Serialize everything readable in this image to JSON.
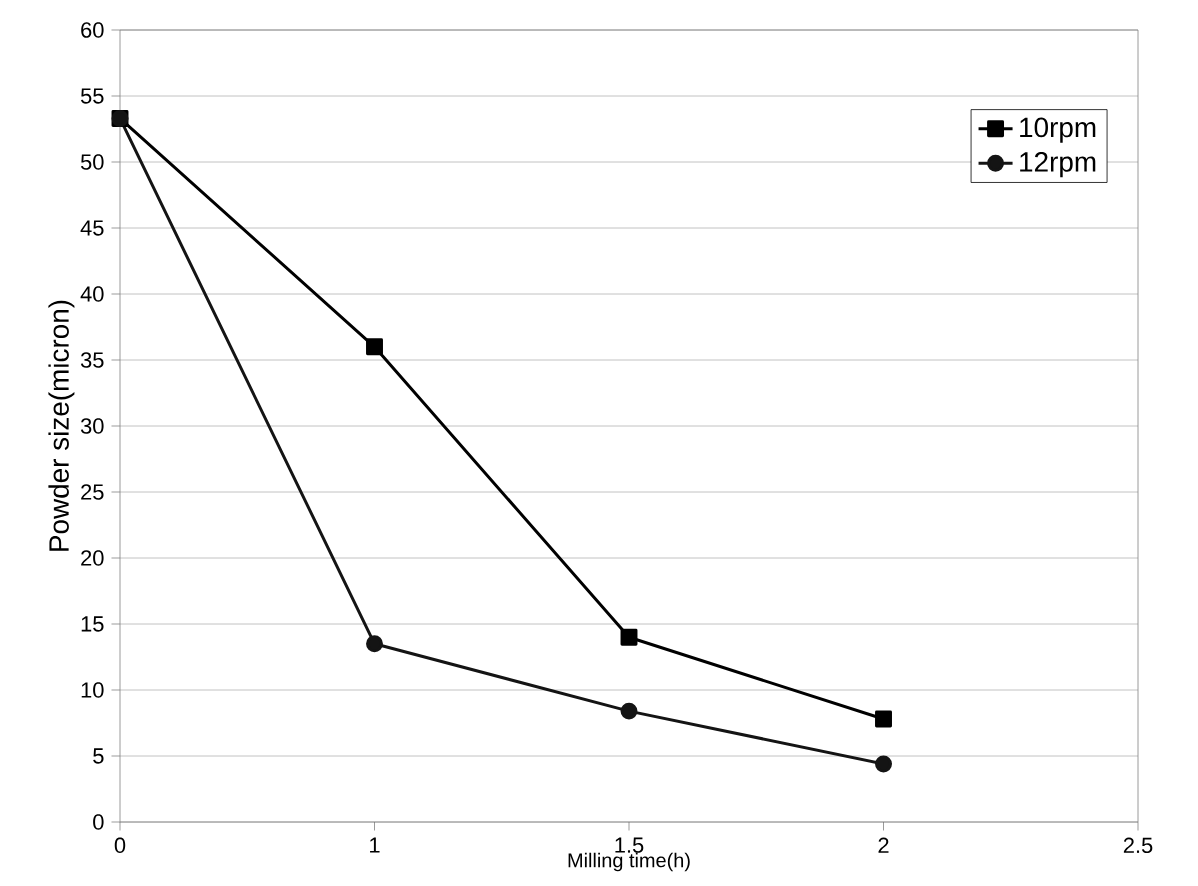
{
  "chart_data": {
    "type": "line",
    "xlabel": "Milling time(h)",
    "ylabel": "Powder size(micron)",
    "categories": [
      "0",
      "1",
      "1.5",
      "2",
      "2.5"
    ],
    "series": [
      {
        "name": "10rpm",
        "color": "#000000",
        "marker": "square",
        "values": [
          53.3,
          36,
          14,
          7.8,
          null
        ]
      },
      {
        "name": "12rpm",
        "color": "#141414",
        "marker": "circle",
        "values": [
          53.3,
          13.5,
          8.4,
          4.4,
          null
        ]
      }
    ],
    "ylim": [
      0,
      60
    ],
    "yticks": [
      0,
      5,
      10,
      15,
      20,
      25,
      30,
      35,
      40,
      45,
      50,
      55,
      60
    ],
    "grid": "y",
    "legend": "top right"
  }
}
